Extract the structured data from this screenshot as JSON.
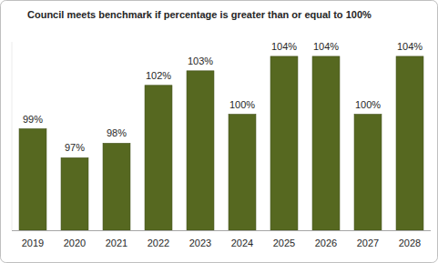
{
  "chart_data": {
    "type": "bar",
    "title": "Council meets benchmark if percentage is greater than or equal to 100%",
    "categories": [
      "2019",
      "2020",
      "2021",
      "2022",
      "2023",
      "2024",
      "2025",
      "2026",
      "2027",
      "2028"
    ],
    "values": [
      99,
      97,
      98,
      102,
      103,
      100,
      104,
      104,
      100,
      104
    ],
    "value_labels": [
      "99%",
      "97%",
      "98%",
      "102%",
      "103%",
      "100%",
      "104%",
      "104%",
      "100%",
      "104%"
    ],
    "color": "#566820",
    "ylim": [
      92,
      105
    ],
    "data_labels": true,
    "tick_labels": "x",
    "grid": false
  }
}
